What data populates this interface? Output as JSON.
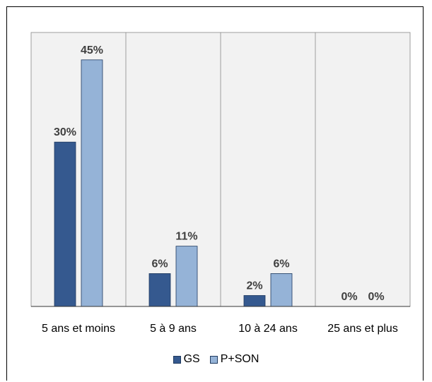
{
  "chart_data": {
    "type": "bar",
    "categories": [
      "5 ans et moins",
      "5 à 9 ans",
      "10 à 24 ans",
      "25 ans et plus"
    ],
    "series": [
      {
        "name": "GS",
        "values": [
          30,
          6,
          2,
          0
        ],
        "labels": [
          "30%",
          "6%",
          "2%",
          "0%"
        ],
        "color": "#35598f"
      },
      {
        "name": "P+SON",
        "values": [
          45,
          11,
          6,
          0
        ],
        "labels": [
          "45%",
          "11%",
          "6%",
          "0%"
        ],
        "color": "#95b3d7"
      }
    ],
    "ylim": [
      0,
      50
    ],
    "plot_background": "#f2f2f2",
    "grid": false,
    "category_separators": true,
    "legend_position": "bottom"
  }
}
